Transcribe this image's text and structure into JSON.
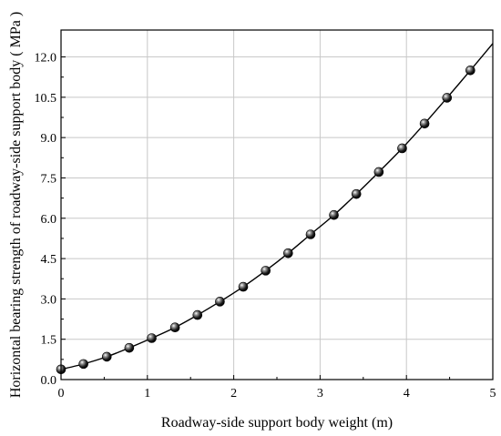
{
  "chart_data": {
    "type": "line",
    "title": "",
    "xlabel": "Roadway-side support body weight  (m)",
    "ylabel": "Horizontal bearing strength of roadway-side support body ( MPa )",
    "xlim": [
      0,
      5
    ],
    "ylim": [
      0,
      13
    ],
    "xticks": [
      0,
      1,
      2,
      3,
      4,
      5
    ],
    "yticks": [
      0.0,
      1.5,
      3.0,
      4.5,
      6.0,
      7.5,
      9.0,
      10.5,
      12.0
    ],
    "x_tick_labels": [
      "0",
      "1",
      "2",
      "3",
      "4",
      "5"
    ],
    "y_tick_labels": [
      "0.0",
      "1.5",
      "3.0",
      "4.5",
      "6.0",
      "7.5",
      "9.0",
      "10.5",
      "12.0"
    ],
    "grid": true,
    "legend": false,
    "series": [
      {
        "marker": "sphere",
        "line": "smooth",
        "color": "#000000",
        "x": [
          0,
          0.26,
          0.53,
          0.79,
          1.05,
          1.32,
          1.58,
          1.84,
          2.11,
          2.37,
          2.63,
          2.89,
          3.16,
          3.42,
          3.68,
          3.95,
          4.21,
          4.47,
          4.74
        ],
        "y": [
          0.38,
          0.58,
          0.85,
          1.18,
          1.54,
          1.94,
          2.4,
          2.9,
          3.45,
          4.05,
          4.7,
          5.4,
          6.12,
          6.9,
          7.72,
          8.6,
          9.52,
          10.48,
          11.5
        ]
      }
    ],
    "curve_end": {
      "x": 5,
      "y": 12.5
    }
  }
}
